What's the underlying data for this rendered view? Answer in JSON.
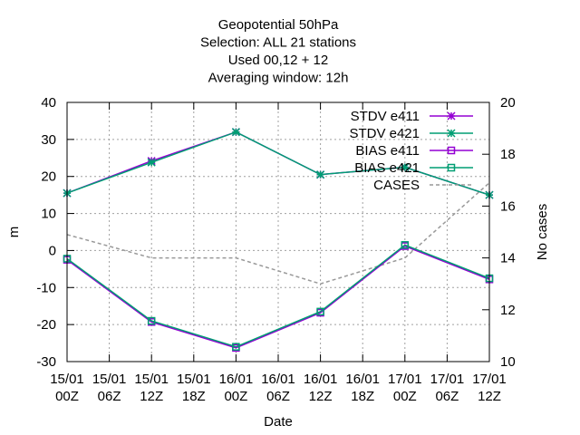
{
  "chart_data": {
    "type": "line",
    "title_lines": [
      "Geopotential 50hPa",
      "Selection: ALL      21 stations",
      "Used  00,12  + 12",
      "Averaging window: 12h"
    ],
    "xlabel": "Date",
    "ylabel": "m",
    "y2label": "No cases",
    "x_ticks": [
      [
        "15/01",
        "00Z"
      ],
      [
        "15/01",
        "06Z"
      ],
      [
        "15/01",
        "12Z"
      ],
      [
        "15/01",
        "18Z"
      ],
      [
        "16/01",
        "00Z"
      ],
      [
        "16/01",
        "06Z"
      ],
      [
        "16/01",
        "12Z"
      ],
      [
        "16/01",
        "18Z"
      ],
      [
        "17/01",
        "00Z"
      ],
      [
        "17/01",
        "06Z"
      ],
      [
        "17/01",
        "12Z"
      ]
    ],
    "y_ticks": [
      40,
      30,
      20,
      10,
      0,
      -10,
      -20,
      -30
    ],
    "y2_ticks": [
      20,
      18,
      16,
      14,
      12,
      10
    ],
    "ylim": [
      -30,
      40
    ],
    "y2lim": [
      10,
      20
    ],
    "grid": true,
    "legend_position": "top-right",
    "x_index": [
      0,
      2,
      4,
      6,
      8,
      10
    ],
    "series": [
      {
        "name": "STDV e411",
        "axis": "y",
        "marker": "star",
        "color": "#9400d3",
        "dashed": false,
        "values": [
          15.5,
          24.2,
          32.0,
          20.5,
          22.5,
          15.0
        ]
      },
      {
        "name": "STDV e421",
        "axis": "y",
        "marker": "star",
        "color": "#009e73",
        "dashed": false,
        "values": [
          15.5,
          23.8,
          32.0,
          20.5,
          22.5,
          15.0
        ]
      },
      {
        "name": "BIAS e411",
        "axis": "y",
        "marker": "square",
        "color": "#9400d3",
        "dashed": false,
        "values": [
          -2.5,
          -19.3,
          -26.3,
          -16.8,
          1.2,
          -7.8
        ]
      },
      {
        "name": "BIAS e421",
        "axis": "y",
        "marker": "square",
        "color": "#009e73",
        "dashed": false,
        "values": [
          -2.2,
          -19.0,
          -26.0,
          -16.5,
          1.5,
          -7.5
        ]
      },
      {
        "name": "CASES",
        "axis": "y2",
        "marker": "none",
        "color": "#999999",
        "dashed": true,
        "values": [
          14.9,
          14.0,
          14.0,
          13.0,
          14.0,
          16.9
        ]
      }
    ]
  }
}
